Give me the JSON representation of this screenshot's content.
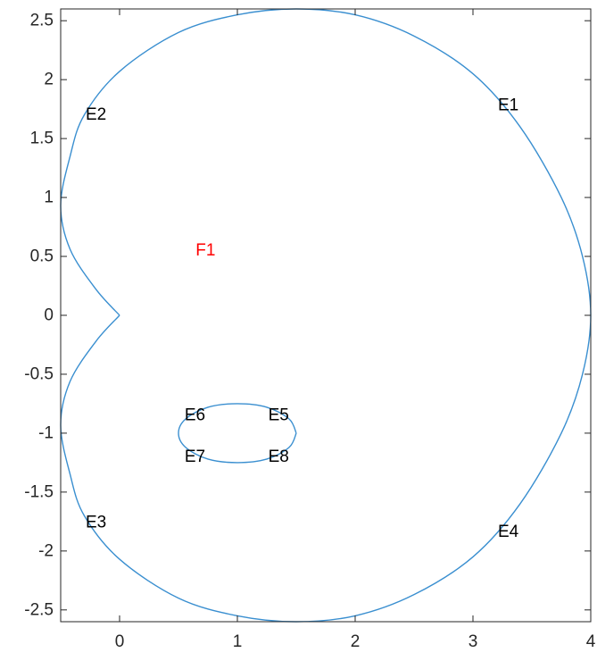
{
  "chart_data": {
    "type": "line",
    "title": "",
    "xlabel": "",
    "ylabel": "",
    "xlim": [
      -0.5,
      4
    ],
    "ylim": [
      -2.6,
      2.6
    ],
    "grid": false,
    "xticks": [
      0,
      1,
      2,
      3,
      4
    ],
    "xtick_labels": [
      "0",
      "1",
      "2",
      "3",
      "4"
    ],
    "yticks": [
      -2.5,
      -2,
      -1.5,
      -1,
      -0.5,
      0,
      0.5,
      1,
      1.5,
      2,
      2.5
    ],
    "ytick_labels": [
      "-2.5",
      "-2",
      "-1.5",
      "-1",
      "-0.5",
      "0",
      "0.5",
      "1",
      "1.5",
      "2",
      "2.5"
    ],
    "series": [
      {
        "line_color": "#3a8fd0",
        "curves": [
          {
            "id": "outer-boundary",
            "points": [
              [
                0,
                0
              ],
              [
                -0.2,
                0.22
              ],
              [
                -0.42,
                0.56
              ],
              [
                -0.5,
                0.93
              ],
              [
                -0.42,
                1.35
              ],
              [
                -0.3,
                1.7
              ],
              [
                0,
                2.07
              ],
              [
                0.5,
                2.4
              ],
              [
                1,
                2.55
              ],
              [
                1.5,
                2.6
              ],
              [
                2.0,
                2.55
              ],
              [
                2.5,
                2.37
              ],
              [
                3.0,
                2.05
              ],
              [
                3.4,
                1.6
              ],
              [
                3.75,
                1.0
              ],
              [
                3.93,
                0.5
              ],
              [
                4.0,
                0
              ],
              [
                3.93,
                -0.5
              ],
              [
                3.75,
                -1.0
              ],
              [
                3.4,
                -1.6
              ],
              [
                3.0,
                -2.05
              ],
              [
                2.5,
                -2.37
              ],
              [
                2.0,
                -2.55
              ],
              [
                1.5,
                -2.6
              ],
              [
                1,
                -2.55
              ],
              [
                0.5,
                -2.4
              ],
              [
                0,
                -2.07
              ],
              [
                -0.3,
                -1.7
              ],
              [
                -0.42,
                -1.35
              ],
              [
                -0.5,
                -0.93
              ],
              [
                -0.42,
                -0.56
              ],
              [
                -0.2,
                -0.22
              ],
              [
                0,
                0
              ]
            ]
          },
          {
            "id": "inner-ellipse",
            "points": [
              [
                1.5,
                -1
              ],
              [
                1.44,
                -0.88
              ],
              [
                1.25,
                -0.78
              ],
              [
                1,
                -0.75
              ],
              [
                0.75,
                -0.78
              ],
              [
                0.56,
                -0.88
              ],
              [
                0.5,
                -1
              ],
              [
                0.56,
                -1.12
              ],
              [
                0.75,
                -1.22
              ],
              [
                1,
                -1.25
              ],
              [
                1.25,
                -1.22
              ],
              [
                1.44,
                -1.12
              ],
              [
                1.5,
                -1
              ]
            ]
          }
        ]
      }
    ],
    "annotations": [
      {
        "text": "E1",
        "x": 3.3,
        "y": 1.78,
        "color": "#000000"
      },
      {
        "text": "E2",
        "x": -0.2,
        "y": 1.7,
        "color": "#000000"
      },
      {
        "text": "E3",
        "x": -0.2,
        "y": -1.76,
        "color": "#000000"
      },
      {
        "text": "E4",
        "x": 3.3,
        "y": -1.84,
        "color": "#000000"
      },
      {
        "text": "E5",
        "x": 1.35,
        "y": -0.85,
        "color": "#000000"
      },
      {
        "text": "E6",
        "x": 0.64,
        "y": -0.85,
        "color": "#000000"
      },
      {
        "text": "E7",
        "x": 0.64,
        "y": -1.2,
        "color": "#000000"
      },
      {
        "text": "E8",
        "x": 1.35,
        "y": -1.2,
        "color": "#000000"
      },
      {
        "text": "F1",
        "x": 0.73,
        "y": 0.55,
        "color": "#ff0000"
      }
    ]
  }
}
